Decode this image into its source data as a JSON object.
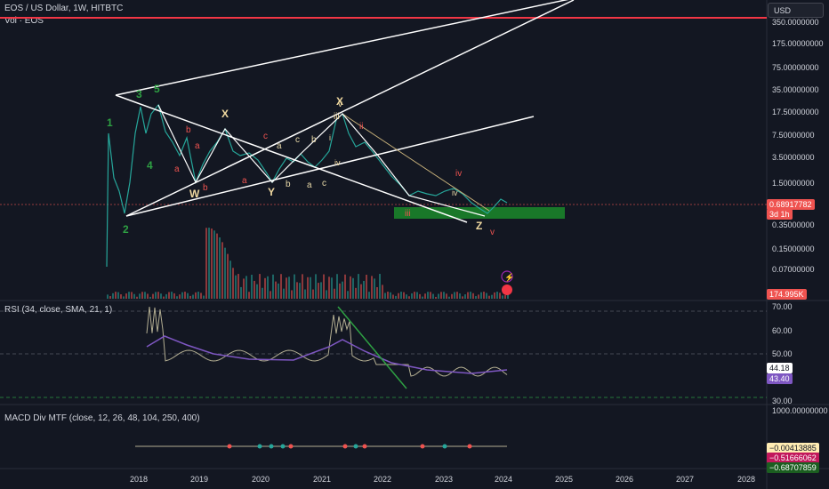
{
  "header": {
    "symbol_line": "EOS / US Dollar, 1W, HITBTC",
    "volume_label": "Vol · EOS",
    "currency": "USD"
  },
  "price_axis": {
    "top_partial": "350.0000000",
    "ticks": [
      "175.00000000",
      "75.00000000",
      "35.00000000",
      "17.50000000",
      "7.50000000",
      "3.50000000",
      "1.50000000",
      "0.35000000",
      "0.15000000",
      "0.07000000"
    ],
    "current_price": "0.68917782",
    "countdown": "3d 1h",
    "volume_value": "174.995K"
  },
  "rsi": {
    "legend": "RSI (34, close, SMA, 21, 1)",
    "ticks": [
      "70.00",
      "60.00",
      "50.00",
      "30.00"
    ],
    "value": "44.18",
    "sma_value": "43.40"
  },
  "macd": {
    "legend": "MACD Div MTF (close, 12, 26, 48, 104, 250, 400)",
    "top_tick": "1000.00000000",
    "values": [
      "−0.00413885",
      "−0.51666062",
      "−0.68707859"
    ]
  },
  "time_axis": [
    "2018",
    "2019",
    "2020",
    "2021",
    "2022",
    "2023",
    "2024",
    "2025",
    "2026",
    "2027",
    "2028"
  ],
  "wave_labels": {
    "green": [
      "1",
      "2",
      "3",
      "4",
      "5"
    ],
    "white": [
      "X",
      "W",
      "Y",
      "X",
      "Z"
    ],
    "yellow": [
      "iii",
      "v",
      "i",
      "iv"
    ],
    "red": [
      "b",
      "a",
      "a",
      "b",
      "a",
      "c",
      "iii",
      "iv",
      "v",
      "ii"
    ],
    "cream": [
      "a",
      "b",
      "c",
      "b",
      "a",
      "c",
      "iv"
    ]
  },
  "colors": {
    "background": "#131722",
    "up": "#26a69a",
    "down": "#ef5350",
    "resistance": "#f23645",
    "support_zone": "#1b8a2a",
    "rsi_line": "#b3ae92",
    "rsi_sma": "#7e57c2"
  }
}
